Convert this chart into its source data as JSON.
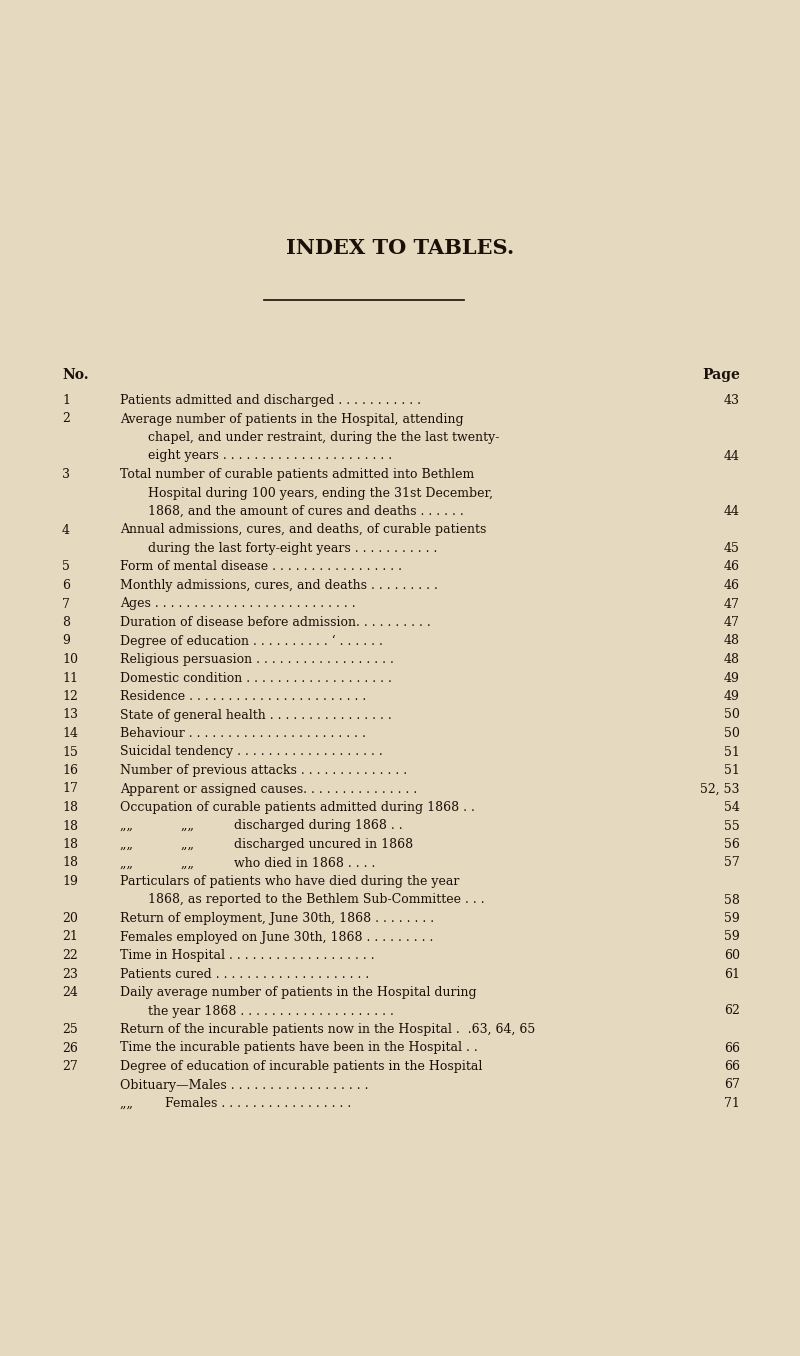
{
  "bg_color": "#e5d9c0",
  "title": "INDEX TO TABLES.",
  "title_fontsize": 15,
  "text_color": "#1a1008",
  "entries": [
    {
      "no": "1",
      "lines": [
        "Patients admitted and discharged . . . . . . . . . . ."
      ],
      "page": "43"
    },
    {
      "no": "2",
      "lines": [
        "Average number of patients in the Hospital, attending",
        "chapel, and under restraint, during the the last twenty-",
        "eight years . . . . . . . . . . . . . . . . . . . . . ."
      ],
      "page": "44"
    },
    {
      "no": "3",
      "lines": [
        "Total number of curable patients admitted into Bethlem",
        "Hospital during 100 years, ending the 31st December,",
        "1868, and the amount of cures and deaths . . . . . ."
      ],
      "page": "44"
    },
    {
      "no": "4",
      "lines": [
        "Annual admissions, cures, and deaths, of curable patients",
        "during the last forty-eight years . . . . . . . . . . ."
      ],
      "page": "45"
    },
    {
      "no": "5",
      "lines": [
        "Form of mental disease . . . . . . . . . . . . . . . . ."
      ],
      "page": "46"
    },
    {
      "no": "6",
      "lines": [
        "Monthly admissions, cures, and deaths . . . . . . . . ."
      ],
      "page": "46"
    },
    {
      "no": "7",
      "lines": [
        "Ages . . . . . . . . . . . . . . . . . . . . . . . . . ."
      ],
      "page": "47"
    },
    {
      "no": "8",
      "lines": [
        "Duration of disease before admission. . . . . . . . . ."
      ],
      "page": "47"
    },
    {
      "no": "9",
      "lines": [
        "Degree of education . . . . . . . . . . ‘ . . . . . ."
      ],
      "page": "48"
    },
    {
      "no": "10",
      "lines": [
        "Religious persuasion . . . . . . . . . . . . . . . . . ."
      ],
      "page": "48"
    },
    {
      "no": "11",
      "lines": [
        "Domestic condition . . . . . . . . . . . . . . . . . . ."
      ],
      "page": "49"
    },
    {
      "no": "12",
      "lines": [
        "Residence . . . . . . . . . . . . . . . . . . . . . . ."
      ],
      "page": "49"
    },
    {
      "no": "13",
      "lines": [
        "State of general health . . . . . . . . . . . . . . . ."
      ],
      "page": "50"
    },
    {
      "no": "14",
      "lines": [
        "Behaviour . . . . . . . . . . . . . . . . . . . . . . ."
      ],
      "page": "50"
    },
    {
      "no": "15",
      "lines": [
        "Suicidal tendency . . . . . . . . . . . . . . . . . . ."
      ],
      "page": "51"
    },
    {
      "no": "16",
      "lines": [
        "Number of previous attacks . . . . . . . . . . . . . ."
      ],
      "page": "51"
    },
    {
      "no": "17",
      "lines": [
        "Apparent or assigned causes. . . . . . . . . . . . . . ."
      ],
      "page": "52, 53"
    },
    {
      "no": "18",
      "lines": [
        "Occupation of curable patients admitted during 1868 . ."
      ],
      "page": "54"
    },
    {
      "no": "18",
      "lines": [
        "„„            „„          discharged during 1868 . ."
      ],
      "page": "55"
    },
    {
      "no": "18",
      "lines": [
        "„„            „„          discharged uncured in 1868"
      ],
      "page": "56"
    },
    {
      "no": "18",
      "lines": [
        "„„            „„          who died in 1868 . . . ."
      ],
      "page": "57"
    },
    {
      "no": "19",
      "lines": [
        "Particulars of patients who have died during the year",
        "1868, as reported to the Bethlem Sub-Committee . . ."
      ],
      "page": "58"
    },
    {
      "no": "20",
      "lines": [
        "Return of employment, June 30th, 1868 . . . . . . . ."
      ],
      "page": "59"
    },
    {
      "no": "21",
      "lines": [
        "Females employed on June 30th, 1868 . . . . . . . . ."
      ],
      "page": "59"
    },
    {
      "no": "22",
      "lines": [
        "Time in Hospital . . . . . . . . . . . . . . . . . . ."
      ],
      "page": "60"
    },
    {
      "no": "23",
      "lines": [
        "Patients cured . . . . . . . . . . . . . . . . . . . ."
      ],
      "page": "61"
    },
    {
      "no": "24",
      "lines": [
        "Daily average number of patients in the Hospital during",
        "the year 1868 . . . . . . . . . . . . . . . . . . . ."
      ],
      "page": "62"
    },
    {
      "no": "25",
      "lines": [
        "Return of the incurable patients now in the Hospital .  .63, 64, 65"
      ],
      "page": ""
    },
    {
      "no": "26",
      "lines": [
        "Time the incurable patients have been in the Hospital . ."
      ],
      "page": "66"
    },
    {
      "no": "27",
      "lines": [
        "Degree of education of incurable patients in the Hospital"
      ],
      "page": "66"
    },
    {
      "no": "",
      "lines": [
        "Obituary—Males . . . . . . . . . . . . . . . . . ."
      ],
      "page": "67"
    },
    {
      "no": "",
      "lines": [
        "„„        Females . . . . . . . . . . . . . . . . ."
      ],
      "page": "71"
    }
  ]
}
